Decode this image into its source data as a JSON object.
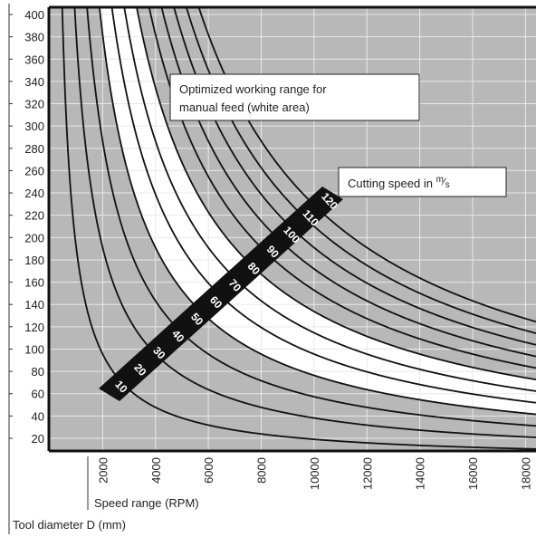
{
  "chart_data": {
    "type": "line",
    "title": "",
    "ylabel": "Tool diameter D (mm)",
    "xlabel": "Speed range (RPM)",
    "xlim": [
      0,
      19000
    ],
    "ylim": [
      0,
      400
    ],
    "x_ticks": [
      2000,
      4000,
      6000,
      8000,
      10000,
      12000,
      14000,
      16000,
      18000
    ],
    "y_ticks": [
      20,
      40,
      60,
      80,
      100,
      120,
      140,
      160,
      180,
      200,
      220,
      240,
      260,
      280,
      300,
      320,
      340,
      360,
      380,
      400
    ],
    "grid": true,
    "series": [
      {
        "name": "10",
        "cutting_speed_m_s": 10
      },
      {
        "name": "20",
        "cutting_speed_m_s": 20
      },
      {
        "name": "30",
        "cutting_speed_m_s": 30
      },
      {
        "name": "40",
        "cutting_speed_m_s": 40
      },
      {
        "name": "50",
        "cutting_speed_m_s": 50
      },
      {
        "name": "60",
        "cutting_speed_m_s": 60
      },
      {
        "name": "70",
        "cutting_speed_m_s": 70
      },
      {
        "name": "80",
        "cutting_speed_m_s": 80
      },
      {
        "name": "90",
        "cutting_speed_m_s": 90
      },
      {
        "name": "100",
        "cutting_speed_m_s": 100
      },
      {
        "name": "110",
        "cutting_speed_m_s": 110
      },
      {
        "name": "120",
        "cutting_speed_m_s": 120
      }
    ],
    "white_area_cutting_speeds_m_s": [
      40,
      50,
      60,
      70
    ],
    "annotations": {
      "working_range_line1": "Optimized working range for",
      "working_range_line2": "manual feed (white area)",
      "cutting_speed_text": "Cutting speed in ",
      "cutting_speed_unit_num": "m",
      "cutting_speed_unit_den": "s"
    },
    "colors": {
      "background": "#b8b8b8",
      "white_area": "#ffffff",
      "curve": "#111111",
      "label_band": "#111111"
    }
  }
}
